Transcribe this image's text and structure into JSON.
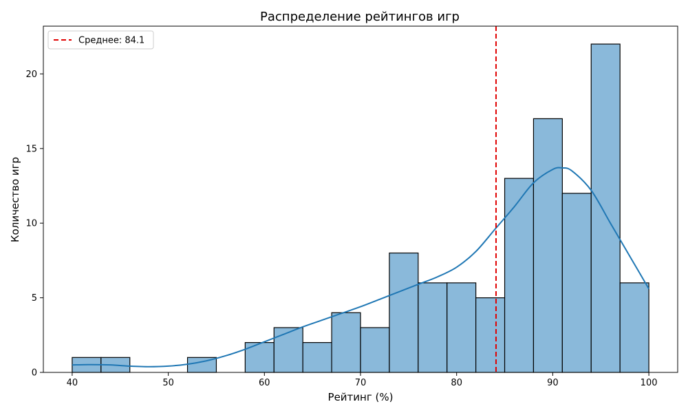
{
  "chart_data": {
    "type": "bar",
    "title": "Распределение рейтингов игр",
    "xlabel": "Рейтинг (%)",
    "ylabel": "Количество игр",
    "xlim": [
      37,
      103
    ],
    "ylim": [
      0,
      23.2
    ],
    "xticks": [
      40,
      50,
      60,
      70,
      80,
      90,
      100
    ],
    "yticks": [
      0,
      5,
      10,
      15,
      20
    ],
    "bin_edges": [
      40,
      43,
      46,
      49,
      52,
      55,
      58,
      61,
      64,
      67,
      70,
      73,
      76,
      79,
      82,
      85,
      88,
      91,
      94,
      97,
      100
    ],
    "counts": [
      1,
      1,
      0,
      0,
      1,
      0,
      2,
      3,
      2,
      4,
      3,
      8,
      6,
      6,
      5,
      13,
      17,
      12,
      22,
      6
    ],
    "kde": {
      "x": [
        40,
        42,
        44,
        46,
        48,
        50,
        52,
        54,
        56,
        58,
        60,
        62,
        64,
        66,
        68,
        70,
        72,
        74,
        76,
        78,
        80,
        82,
        84,
        86,
        88,
        90,
        91,
        92,
        94,
        96,
        98,
        100
      ],
      "y": [
        0.5,
        0.52,
        0.5,
        0.42,
        0.38,
        0.42,
        0.55,
        0.78,
        1.12,
        1.55,
        2.05,
        2.55,
        3.05,
        3.5,
        3.95,
        4.4,
        4.9,
        5.4,
        5.9,
        6.4,
        7.05,
        8.1,
        9.6,
        11.1,
        12.7,
        13.6,
        13.7,
        13.5,
        12.2,
        10.0,
        7.8,
        5.6
      ]
    },
    "mean": 84.1,
    "legend": {
      "position": "top-left",
      "label": "Среднее: 84.1"
    },
    "colors": {
      "bars": "#8ab9da",
      "bar_edge": "#000000",
      "kde": "#1f77b4",
      "mean_line": "#e00000"
    }
  }
}
